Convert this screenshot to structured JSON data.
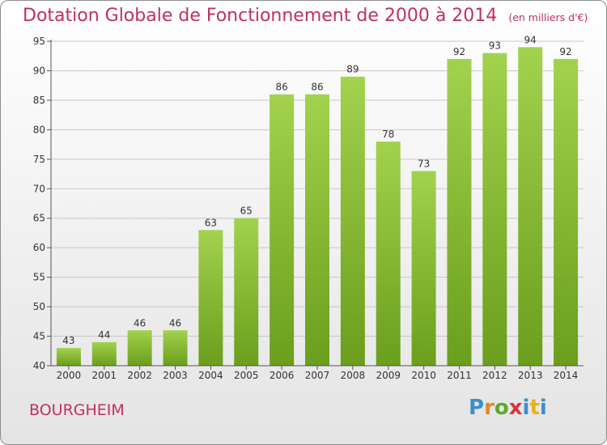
{
  "header": {
    "title": "Dotation Globale de Fonctionnement de 2000 à 2014",
    "unit": "(en milliers d'€)"
  },
  "footer": {
    "commune": "BOURGHEIM",
    "logo_text": "Proxiti"
  },
  "colors": {
    "title": "#c0305e",
    "bar_light": "#a2d24e",
    "bar_dark": "#6a9e1c",
    "grid": "#c8c8c8",
    "axis": "#555555"
  },
  "chart_data": {
    "type": "bar",
    "categories": [
      "2000",
      "2001",
      "2002",
      "2003",
      "2004",
      "2005",
      "2006",
      "2007",
      "2008",
      "2009",
      "2010",
      "2011",
      "2012",
      "2013",
      "2014"
    ],
    "values": [
      43,
      44,
      46,
      46,
      63,
      65,
      86,
      86,
      89,
      78,
      73,
      92,
      93,
      94,
      92
    ],
    "title": "Dotation Globale de Fonctionnement de 2000 à 2014",
    "subtitle": "(en milliers d'€)",
    "xlabel": "",
    "ylabel": "",
    "ylim": [
      40,
      95
    ],
    "yticks": [
      40,
      45,
      50,
      55,
      60,
      65,
      70,
      75,
      80,
      85,
      90,
      95
    ],
    "grid": true,
    "data_labels": true
  }
}
